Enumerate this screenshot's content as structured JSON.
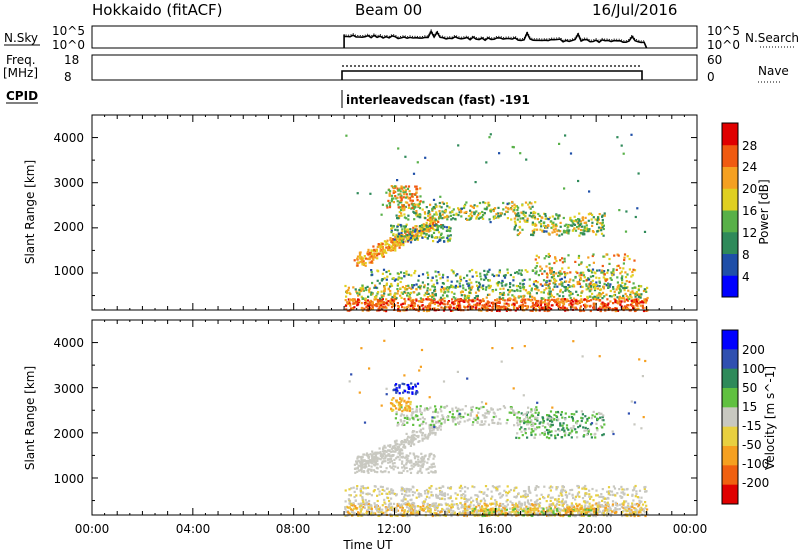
{
  "header": {
    "station": "Hokkaido (fitACF)",
    "beam": "Beam 00",
    "date": "16/Jul/2016"
  },
  "top_panels": {
    "nsky_label": "N.Sky",
    "nsky_ticks": [
      "10^5",
      "10^0"
    ],
    "nsearch_ticks": [
      "10^5",
      "10^0"
    ],
    "nsearch_label": "N.Search",
    "freq_label_line1": "Freq.",
    "freq_label_line2": "[MHz]",
    "freq_ticks": [
      "18",
      "8"
    ],
    "nave_ticks": [
      "60",
      "0"
    ],
    "nave_label": "Nave",
    "cpid_label": "CPID",
    "cpid_value": "interleavedscan (fast) -191"
  },
  "colors": {
    "power_scale": [
      "#0000ff",
      "#1f4fa8",
      "#2f8a5a",
      "#58b048",
      "#e0d020",
      "#f5a020",
      "#f05a10",
      "#e00000"
    ],
    "velocity_scale": [
      "#0000ff",
      "#3050b0",
      "#2f8a5a",
      "#60c040",
      "#c8c8c0",
      "#e8d040",
      "#f5a020",
      "#f06010",
      "#e00000"
    ],
    "ground_scatter": "#c8c8c0"
  },
  "chart_data": [
    {
      "type": "heatmap",
      "name": "power-panel",
      "ylabel": "Slant Range [km]",
      "yticks": [
        1000,
        2000,
        3000,
        4000
      ],
      "ylim": [
        180,
        4500
      ],
      "xlim_hours": [
        0,
        24
      ],
      "colorbar_label": "Power [dB]",
      "colorbar_ticks": [
        "28",
        "24",
        "20",
        "16",
        "12",
        "8",
        "4"
      ],
      "data_window_hours": [
        10,
        22
      ]
    },
    {
      "type": "heatmap",
      "name": "velocity-panel",
      "xlabel": "Time UT",
      "xticks": [
        "00:00",
        "04:00",
        "08:00",
        "12:00",
        "16:00",
        "20:00",
        "00:00"
      ],
      "ylabel": "Slant Range [km]",
      "yticks": [
        1000,
        2000,
        3000,
        4000
      ],
      "ylim": [
        180,
        4500
      ],
      "xlim_hours": [
        0,
        24
      ],
      "colorbar_label": "Velocity [m s^-1]",
      "colorbar_ticks": [
        "200",
        "100",
        "50",
        "15",
        "-15",
        "-50",
        "-100",
        "-200"
      ],
      "data_window_hours": [
        10,
        22
      ]
    }
  ]
}
